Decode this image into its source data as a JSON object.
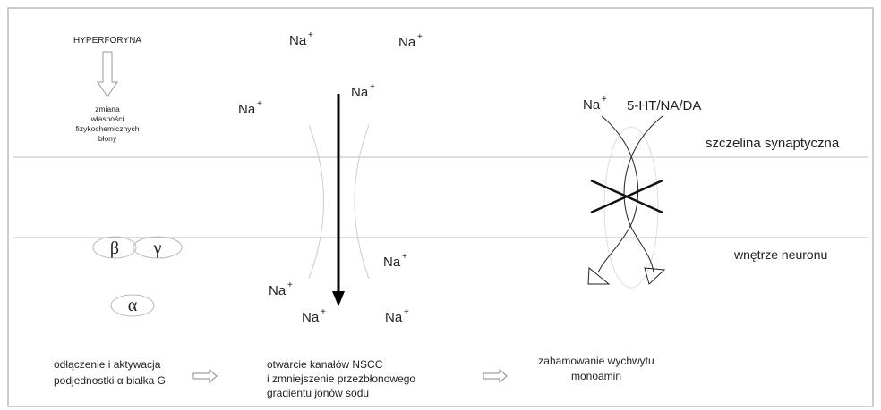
{
  "hyperforin": {
    "label": "HYPERFORYNA",
    "effect": [
      "zmiana",
      "własności",
      "fizykochemicznych",
      "błony"
    ]
  },
  "ions": [
    {
      "symbol": "Na",
      "charge": "+"
    },
    {
      "symbol": "Na",
      "charge": "+"
    },
    {
      "symbol": "Na",
      "charge": "+"
    },
    {
      "symbol": "Na",
      "charge": "+"
    },
    {
      "symbol": "Na",
      "charge": "+"
    },
    {
      "symbol": "Na",
      "charge": "+"
    },
    {
      "symbol": "Na",
      "charge": "+"
    },
    {
      "symbol": "Na",
      "charge": "+"
    },
    {
      "symbol": "Na",
      "charge": "+"
    }
  ],
  "g_protein": {
    "beta": "β",
    "gamma": "γ",
    "alpha": "α"
  },
  "transporter": {
    "substrate": "5-HT/NA/DA"
  },
  "regions": {
    "outside": "szczelina synaptyczna",
    "inside": "wnętrze neuronu"
  },
  "steps": [
    {
      "lines": [
        "odłączenie i aktywacja",
        "podjednostki α białka G"
      ]
    },
    {
      "lines": [
        "otwarcie kanałów NSCC",
        "i zmniejszenie przezbłonowego",
        "gradientu jonów sodu"
      ]
    },
    {
      "lines": [
        "zahamowanie wychwytu",
        "monoamin"
      ]
    }
  ]
}
